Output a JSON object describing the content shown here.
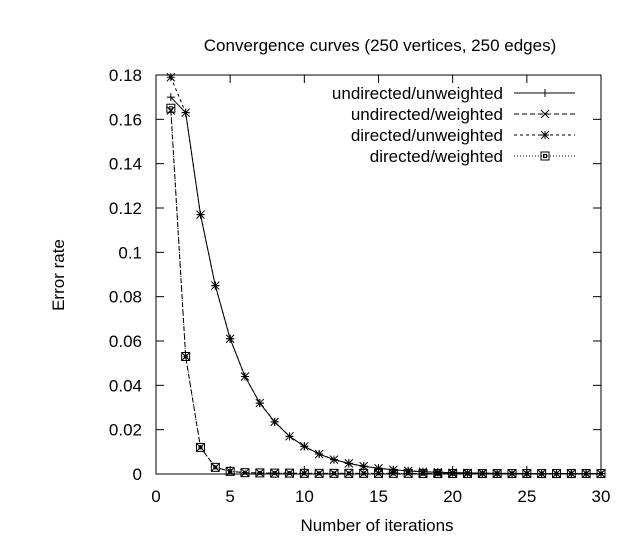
{
  "chart_data": {
    "type": "line",
    "title": "Convergence curves (250 vertices, 250 edges)",
    "xlabel": "Number of iterations",
    "ylabel": "Error rate",
    "xlim": [
      0,
      30
    ],
    "ylim": [
      0,
      0.18
    ],
    "xticks": [
      0,
      5,
      10,
      15,
      20,
      25,
      30
    ],
    "yticks": [
      0,
      0.02,
      0.04,
      0.06,
      0.08,
      0.1,
      0.12,
      0.14,
      0.16,
      0.18
    ],
    "grid": false,
    "legend_position": "top-right",
    "x": [
      1,
      2,
      3,
      4,
      5,
      6,
      7,
      8,
      9,
      10,
      11,
      12,
      13,
      14,
      15,
      16,
      17,
      18,
      19,
      20,
      21,
      22,
      23,
      24,
      25,
      26,
      27,
      28,
      29,
      30
    ],
    "series": [
      {
        "name": "undirected/unweighted",
        "marker": "plus",
        "dash": "solid",
        "values": [
          0.17,
          0.163,
          0.117,
          0.085,
          0.061,
          0.044,
          0.032,
          0.0235,
          0.017,
          0.0125,
          0.009,
          0.0065,
          0.0048,
          0.0035,
          0.0026,
          0.0019,
          0.0014,
          0.001,
          0.0008,
          0.0006,
          0.0005,
          0.0004,
          0.0003,
          0.0003,
          0.0002,
          0.0002,
          0.0002,
          0.0002,
          0.0002,
          0.0002
        ]
      },
      {
        "name": "undirected/weighted",
        "marker": "x",
        "dash": "dashed",
        "values": [
          0.164,
          0.053,
          0.012,
          0.003,
          0.0012,
          0.0006,
          0.0005,
          0.0004,
          0.0004,
          0.0003,
          0.0003,
          0.0003,
          0.0003,
          0.0003,
          0.0003,
          0.0003,
          0.0003,
          0.0002,
          0.0002,
          0.0002,
          0.0002,
          0.0002,
          0.0002,
          0.0002,
          0.0002,
          0.0002,
          0.0002,
          0.0002,
          0.0002,
          0.0002
        ]
      },
      {
        "name": "directed/unweighted",
        "marker": "star",
        "dash": "short-dashed",
        "values": [
          0.179,
          0.163,
          0.117,
          0.085,
          0.061,
          0.044,
          0.032,
          0.0235,
          0.017,
          0.0125,
          0.009,
          0.0065,
          0.0048,
          0.0035,
          0.0026,
          0.0019,
          0.0014,
          0.001,
          0.0008,
          0.0006,
          0.0005,
          0.0004,
          0.0003,
          0.0003,
          0.0002,
          0.0002,
          0.0002,
          0.0002,
          0.0002,
          0.0002
        ]
      },
      {
        "name": "directed/weighted",
        "marker": "box",
        "dash": "dotted",
        "values": [
          0.165,
          0.053,
          0.012,
          0.003,
          0.0012,
          0.0006,
          0.0005,
          0.0004,
          0.0004,
          0.0003,
          0.0003,
          0.0003,
          0.0003,
          0.0003,
          0.0003,
          0.0003,
          0.0003,
          0.0002,
          0.0002,
          0.0002,
          0.0002,
          0.0002,
          0.0002,
          0.0002,
          0.0002,
          0.0002,
          0.0002,
          0.0002,
          0.0002,
          0.0002
        ]
      }
    ]
  }
}
